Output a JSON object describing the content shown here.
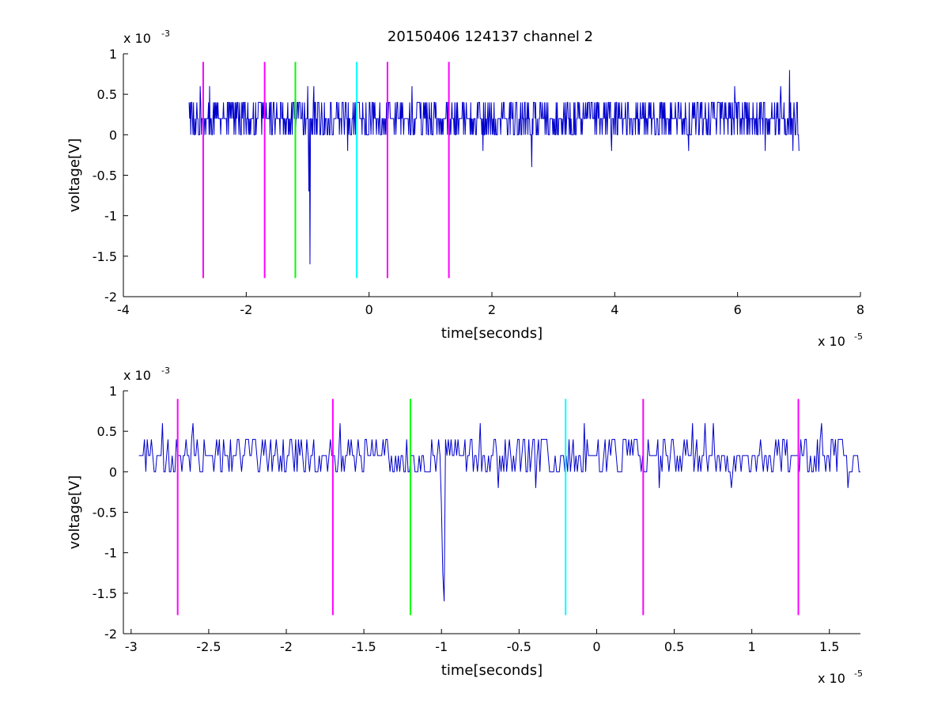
{
  "figure": {
    "title": "20150406 124137 channel 2",
    "background": "#ffffff",
    "signal_color": "#0000cc",
    "marker_colors": {
      "magenta": "#ff00ff",
      "green": "#00ff00",
      "cyan": "#00ffff"
    }
  },
  "chart_data": [
    {
      "type": "line",
      "title": "20150406 124137 channel 2",
      "xlabel": "time[seconds]",
      "ylabel": "voltage[V]",
      "x_exponent": "x 10",
      "x_exponent_power": "-5",
      "y_exponent": "x 10",
      "y_exponent_power": "-3",
      "xlim": [
        -4,
        8
      ],
      "ylim": [
        -2,
        1
      ],
      "xticks": [
        -4,
        -2,
        0,
        2,
        4,
        6,
        8
      ],
      "xtick_labels": [
        "-4",
        "-2",
        "0",
        "2",
        "4",
        "6",
        "8"
      ],
      "yticks": [
        -2,
        -1.5,
        -1,
        -0.5,
        0,
        0.5,
        1
      ],
      "ytick_labels": [
        "-2",
        "-1.5",
        "-1",
        "-0.5",
        "0",
        "0.5",
        "1"
      ],
      "grid": false,
      "signal": {
        "x_start": -2.93,
        "x_end": 7.0,
        "baseline": 0.2,
        "levels": [
          0,
          0.2,
          0.4
        ],
        "peaks": [
          {
            "x": -2.75,
            "y": 0.6
          },
          {
            "x": -2.6,
            "y": 0.6
          },
          {
            "x": -1.0,
            "y": 0.6
          },
          {
            "x": -0.9,
            "y": 0.6
          },
          {
            "x": 0.7,
            "y": 0.6
          },
          {
            "x": 1.85,
            "y": 0.6
          },
          {
            "x": 5.95,
            "y": 0.6
          },
          {
            "x": 6.85,
            "y": 0.8
          },
          {
            "x": 6.7,
            "y": 0.6
          }
        ],
        "dips": [
          {
            "x": -0.96,
            "y": -1.6
          },
          {
            "x": -0.98,
            "y": -0.7
          },
          {
            "x": 2.65,
            "y": -0.4
          },
          {
            "x": -0.35,
            "y": -0.2
          },
          {
            "x": 1.85,
            "y": -0.2
          },
          {
            "x": 3.95,
            "y": -0.2
          },
          {
            "x": 5.2,
            "y": -0.2
          },
          {
            "x": 6.45,
            "y": -0.2
          },
          {
            "x": 6.9,
            "y": -0.2
          },
          {
            "x": 7.0,
            "y": -0.2
          }
        ]
      },
      "markers": [
        {
          "x": -2.7,
          "color": "magenta",
          "y_top": 0.9,
          "y_bottom": -1.77
        },
        {
          "x": -1.7,
          "color": "magenta",
          "y_top": 0.9,
          "y_bottom": -1.77
        },
        {
          "x": -1.2,
          "color": "green",
          "y_top": 0.9,
          "y_bottom": -1.77
        },
        {
          "x": -0.2,
          "color": "cyan",
          "y_top": 0.9,
          "y_bottom": -1.77
        },
        {
          "x": 0.3,
          "color": "magenta",
          "y_top": 0.9,
          "y_bottom": -1.77
        },
        {
          "x": 1.3,
          "color": "magenta",
          "y_top": 0.9,
          "y_bottom": -1.77
        }
      ]
    },
    {
      "type": "line",
      "title": "",
      "xlabel": "time[seconds]",
      "ylabel": "voltage[V]",
      "x_exponent": "x 10",
      "x_exponent_power": "-5",
      "y_exponent": "x 10",
      "y_exponent_power": "-3",
      "xlim": [
        -3.05,
        1.7
      ],
      "ylim": [
        -2,
        1
      ],
      "xticks": [
        -3,
        -2.5,
        -2,
        -1.5,
        -1,
        -0.5,
        0,
        0.5,
        1,
        1.5
      ],
      "xtick_labels": [
        "-3",
        "-2.5",
        "-2",
        "-1.5",
        "-1",
        "-0.5",
        "0",
        "0.5",
        "1",
        "1.5"
      ],
      "yticks": [
        -2,
        -1.5,
        -1,
        -0.5,
        0,
        0.5,
        1
      ],
      "ytick_labels": [
        "-2",
        "-1.5",
        "-1",
        "-0.5",
        "0",
        "0.5",
        "1"
      ],
      "grid": false,
      "signal": {
        "x_start": -2.95,
        "x_end": 1.7,
        "baseline": 0.2,
        "levels": [
          0,
          0.2,
          0.4
        ],
        "peaks": [
          {
            "x": -2.8,
            "y": 0.6
          },
          {
            "x": -2.6,
            "y": 0.6
          },
          {
            "x": -1.65,
            "y": 0.6
          },
          {
            "x": -0.75,
            "y": 0.6
          },
          {
            "x": -0.08,
            "y": 0.6
          },
          {
            "x": 0.62,
            "y": 0.6
          },
          {
            "x": 0.7,
            "y": 0.6
          },
          {
            "x": 0.75,
            "y": 0.6
          },
          {
            "x": 1.45,
            "y": 0.6
          }
        ],
        "dips": [
          {
            "x": -0.98,
            "y": -1.6
          },
          {
            "x": -0.99,
            "y": -1.25
          },
          {
            "x": -1.0,
            "y": -0.4
          },
          {
            "x": -0.63,
            "y": -0.2
          },
          {
            "x": -0.39,
            "y": -0.2
          },
          {
            "x": 0.4,
            "y": -0.2
          },
          {
            "x": 0.87,
            "y": -0.2
          },
          {
            "x": 1.62,
            "y": -0.2
          }
        ]
      },
      "markers": [
        {
          "x": -2.7,
          "color": "magenta",
          "y_top": 0.9,
          "y_bottom": -1.77
        },
        {
          "x": -1.7,
          "color": "magenta",
          "y_top": 0.9,
          "y_bottom": -1.77
        },
        {
          "x": -1.2,
          "color": "green",
          "y_top": 0.9,
          "y_bottom": -1.77
        },
        {
          "x": -0.2,
          "color": "cyan",
          "y_top": 0.9,
          "y_bottom": -1.77
        },
        {
          "x": 0.3,
          "color": "magenta",
          "y_top": 0.9,
          "y_bottom": -1.77
        },
        {
          "x": 1.3,
          "color": "magenta",
          "y_top": 0.9,
          "y_bottom": -1.77
        }
      ]
    }
  ]
}
